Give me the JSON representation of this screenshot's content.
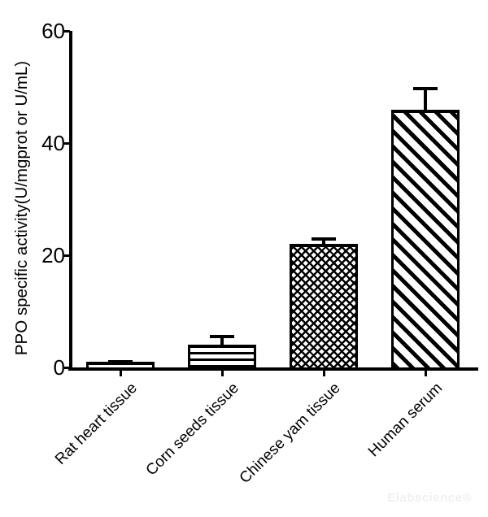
{
  "chart_data": {
    "type": "bar",
    "title": "",
    "categories": [
      "Rat heart tissue",
      "Corn seeds tissue",
      "Chinese yam tissue",
      "Human serum"
    ],
    "values": [
      1,
      4,
      22,
      46
    ],
    "errors": [
      0.3,
      1.8,
      1.2,
      4
    ],
    "error_bar_style": "upper-only",
    "patterns": [
      "plain",
      "horizontal-lines",
      "diagonal-crosshatch",
      "diagonal-stripes"
    ],
    "xlabel": "",
    "ylabel": "PPO specific activity(U/mgprot or U/mL)",
    "yticks": [
      0,
      20,
      40,
      60
    ],
    "ylim": [
      0,
      60
    ],
    "grid": false,
    "legend_position": "none",
    "bar_fill": "#ffffff",
    "line_color": "#000000",
    "xtick_label_rotation": 45
  },
  "watermark": {
    "text": "Elabscience®"
  }
}
